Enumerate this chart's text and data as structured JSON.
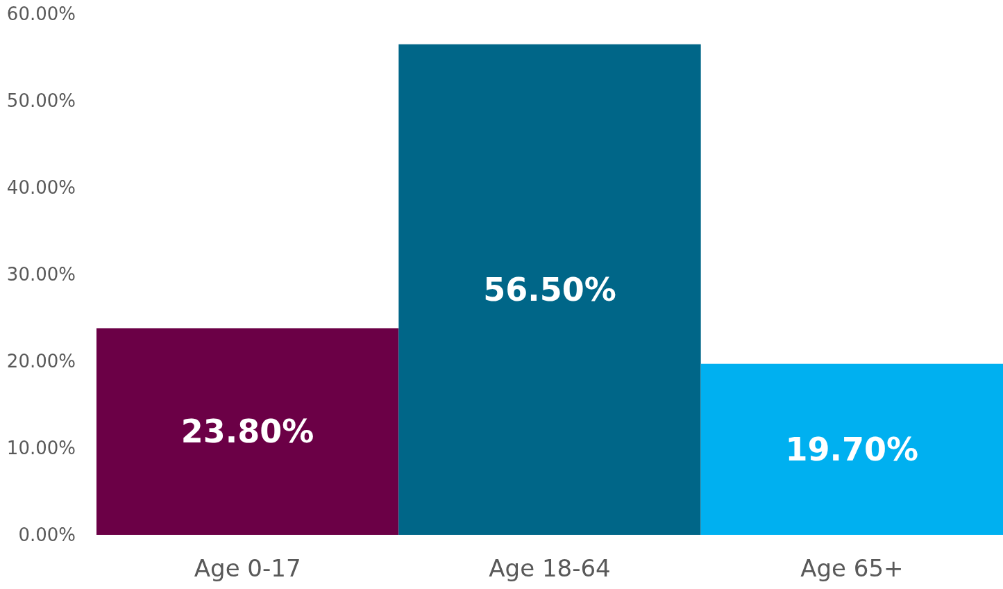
{
  "chart_data": {
    "type": "bar",
    "categories": [
      "Age 0-17",
      "Age 18-64",
      "Age 65+"
    ],
    "values": [
      23.8,
      56.5,
      19.7
    ],
    "colors": [
      "#6b0046",
      "#006688",
      "#00b0f0"
    ],
    "value_labels": [
      "23.80%",
      "56.50%",
      "19.70%"
    ],
    "ylim": [
      0,
      60
    ],
    "yticks": [
      {
        "value": 0,
        "label": "0.00%"
      },
      {
        "value": 10,
        "label": "10.00%"
      },
      {
        "value": 20,
        "label": "20.00%"
      },
      {
        "value": 30,
        "label": "30.00%"
      },
      {
        "value": 40,
        "label": "40.00%"
      },
      {
        "value": 50,
        "label": "50.00%"
      },
      {
        "value": 60,
        "label": "60.00%"
      }
    ],
    "grid": false
  }
}
